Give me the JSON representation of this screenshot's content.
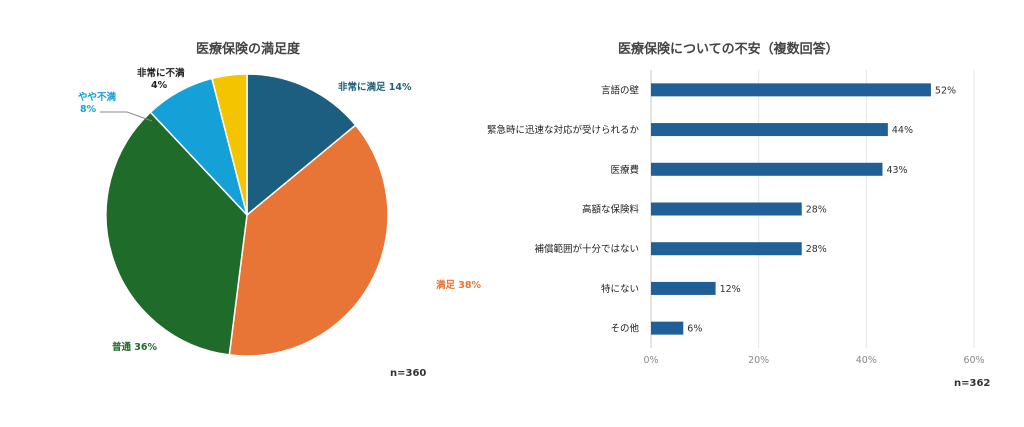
{
  "charts": {
    "left": {
      "title": "医療保険の満足度",
      "n": "n=360"
    },
    "right": {
      "title": "医療保険についての不安（複数回答）",
      "n": "n=362"
    }
  },
  "chart_data": [
    {
      "type": "pie",
      "title": "医療保険の満足度",
      "slices": [
        {
          "name": "非常に満足",
          "value": 14,
          "label": "非常に満足 14%",
          "color": "#1b5e80"
        },
        {
          "name": "満足",
          "value": 38,
          "label": "満足 38%",
          "color": "#e87435"
        },
        {
          "name": "普通",
          "value": 36,
          "label": "普通 36%",
          "color": "#1f6b2a"
        },
        {
          "name": "やや不満",
          "value": 8,
          "label_line1": "やや不満",
          "label_line2": "8%",
          "color": "#15a0d8"
        },
        {
          "name": "非常に不満",
          "value": 4,
          "label_line1": "非常に不満",
          "label_line2": "4%",
          "color": "#f5c400"
        }
      ],
      "n": "n=360"
    },
    {
      "type": "bar",
      "orientation": "horizontal",
      "title": "医療保険についての不安（複数回答）",
      "categories": [
        "言語の壁",
        "緊急時に迅速な対応が受けられるか",
        "医療費",
        "高額な保険料",
        "補償範囲が十分ではない",
        "特にない",
        "その他"
      ],
      "values": [
        52,
        44,
        43,
        28,
        28,
        12,
        6
      ],
      "value_labels": [
        "52%",
        "44%",
        "43%",
        "28%",
        "28%",
        "12%",
        "6%"
      ],
      "xlim": [
        0,
        60
      ],
      "xticks": [
        "0%",
        "20%",
        "40%",
        "60%"
      ],
      "bar_color": "#215f97",
      "grid": true,
      "n": "n=362"
    }
  ]
}
